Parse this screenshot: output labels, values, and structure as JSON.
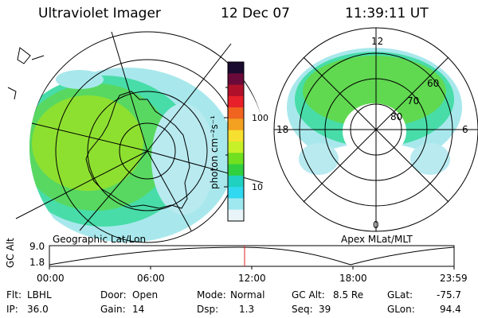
{
  "header": {
    "instrument": "Ultraviolet Imager",
    "date": "12 Dec 07",
    "time": "11:39:11 UT"
  },
  "geo_panel": {
    "label": "Geographic Lat/Lon"
  },
  "polar_panel": {
    "label": "Apex MLat/MLT",
    "mlt_labels": {
      "top": "12",
      "left": "18",
      "right": "6",
      "bottom": "0"
    },
    "lat_labels": [
      "60",
      "70",
      "80"
    ]
  },
  "colorbar": {
    "label": "photon cm⁻²s⁻¹",
    "ticks": [
      "100",
      "10"
    ],
    "colors": [
      "#1a0a2e",
      "#6a0a3a",
      "#b0102a",
      "#e8202a",
      "#f06420",
      "#f4a020",
      "#f8e030",
      "#c8f028",
      "#70e020",
      "#30d040",
      "#20d0c0",
      "#30d8f0",
      "#a0e8f0",
      "#e8f4f8"
    ]
  },
  "altitude_plot": {
    "ylabel": "GC Alt",
    "ytick_top": "9.0",
    "ytick_bottom": "1.8",
    "xticks": [
      "00:00",
      "06:00",
      "12:00",
      "18:00",
      "23:59"
    ],
    "marker_time": "11:39"
  },
  "status": {
    "flt_label": "Flt:",
    "flt_value": "LBHL",
    "ip_label": "IP:",
    "ip_value": "36.0",
    "door_label": "Door:",
    "door_value": "Open",
    "gain_label": "Gain:",
    "gain_value": "14",
    "mode_label": "Mode:",
    "mode_value": "Normal",
    "dsp_label": "Dsp:",
    "dsp_value": "1.3",
    "gcalt_label": "GC Alt:",
    "gcalt_value": "8.5 Re",
    "seq_label": "Seq:",
    "seq_value": "39",
    "glat_label": "GLat:",
    "glat_value": "-75.7",
    "glon_label": "GLon:",
    "glon_value": "94.4"
  }
}
